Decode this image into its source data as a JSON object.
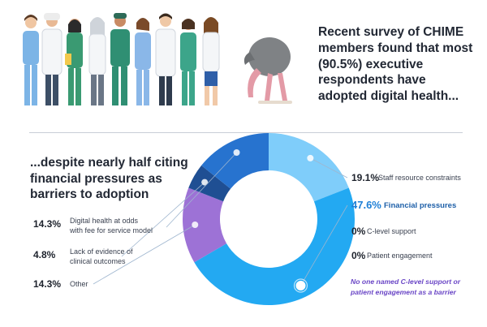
{
  "headline": "Recent survey of CHIME members found that most (90.5%) executive respondents have adopted digital health...",
  "subhead": "...despite nearly half citing financial pressures as barriers to adoption",
  "note": "No one named C-level support or patient engagement as a barrier",
  "colors": {
    "staff": "#7fcdfa",
    "financial": "#23a9f2",
    "fee_model": "#2773cf",
    "clinical": "#1f4f93",
    "other": "#9d72d6",
    "accent_text": "#1d7fd6",
    "note_text": "#6a46c6"
  },
  "chart_data": {
    "type": "pie",
    "variant": "donut",
    "title": "",
    "slices": [
      {
        "label": "Staff resource constraints",
        "pct_label": "19.1%",
        "value": 19.1,
        "color_key": "staff"
      },
      {
        "label": "Financial pressures",
        "pct_label": "47.6%",
        "value": 47.6,
        "color_key": "financial",
        "highlight": true
      },
      {
        "label": "Other",
        "pct_label": "14.3%",
        "value": 14.3,
        "color_key": "other"
      },
      {
        "label": "Lack of evidence of clinical outcomes",
        "pct_label": "4.8%",
        "value": 4.8,
        "color_key": "clinical"
      },
      {
        "label": "Digital health at odds with fee for service model",
        "pct_label": "14.3%",
        "value": 14.3,
        "color_key": "fee_model"
      },
      {
        "label": "C-level support",
        "pct_label": "0%",
        "value": 0,
        "color_key": "none"
      },
      {
        "label": "Patient engagement",
        "pct_label": "0%",
        "value": 0,
        "color_key": "none"
      }
    ],
    "legend_placement": "left-and-right"
  }
}
